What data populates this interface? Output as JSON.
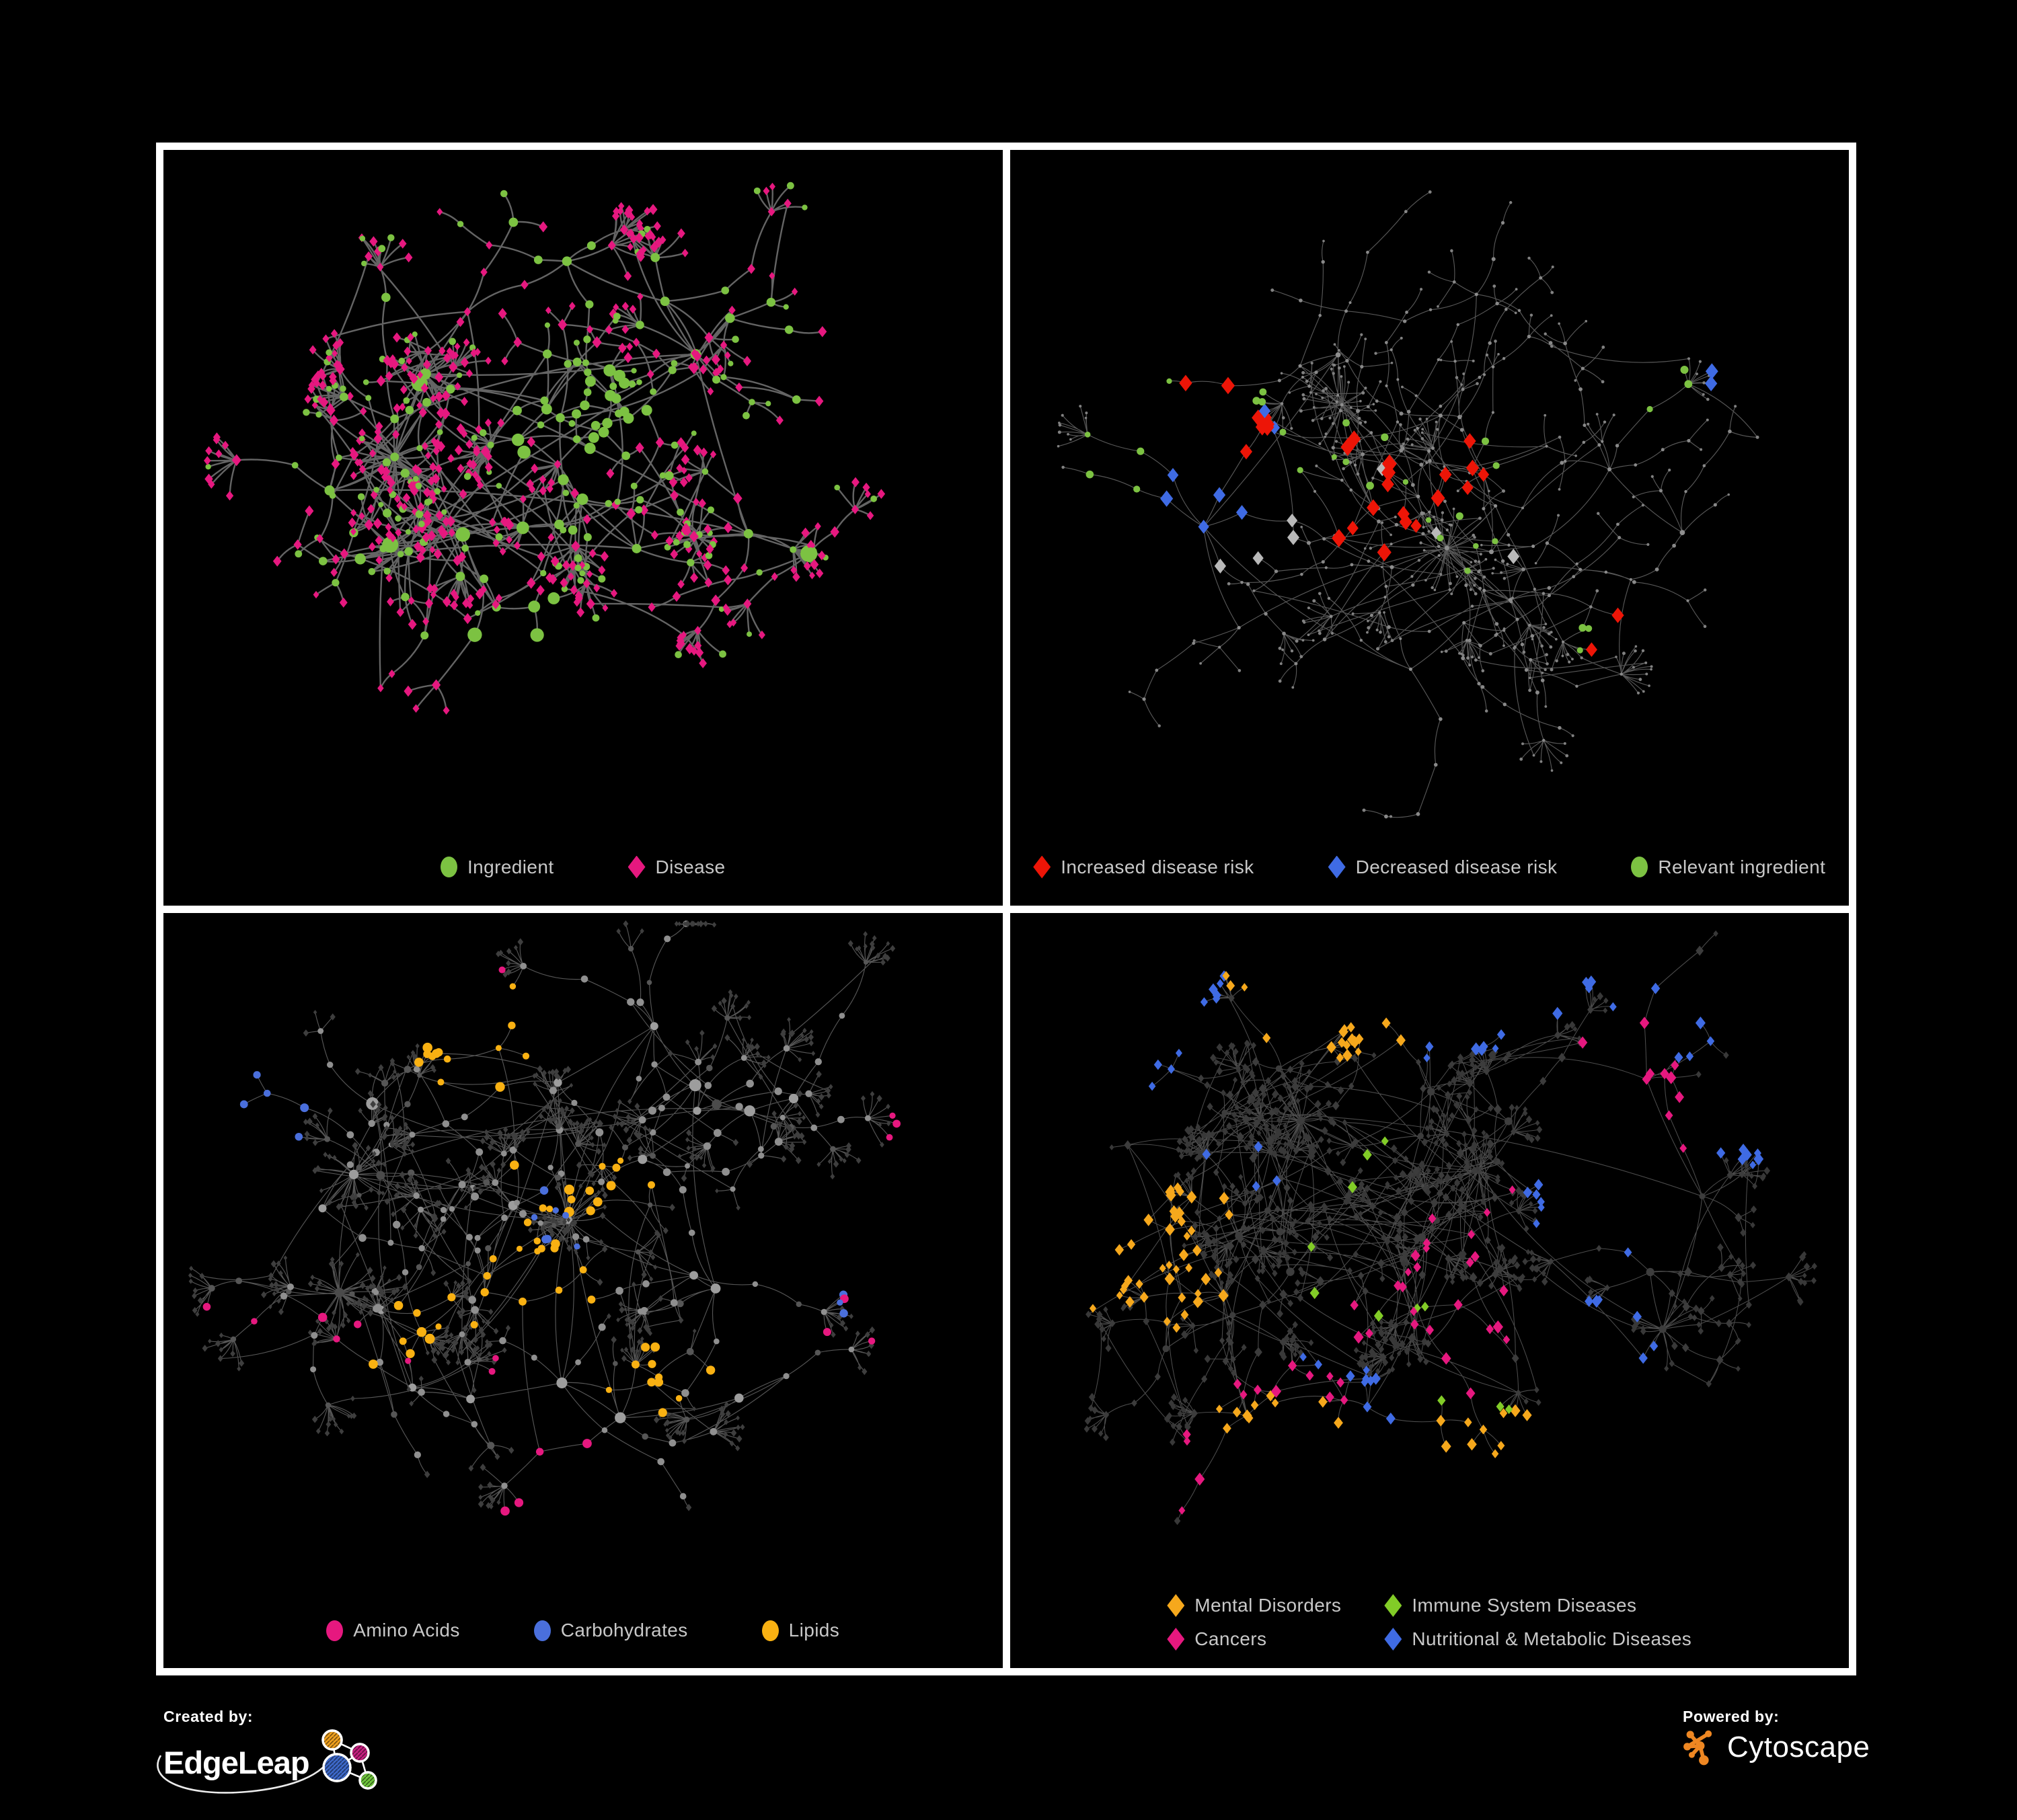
{
  "canvas": {
    "background": "#000000",
    "frame_color": "#ffffff"
  },
  "palette": {
    "ingredient_green": "#7CC242",
    "disease_pink": "#E6187F",
    "risk_red": "#ED1507",
    "risk_blue": "#3F6BE4",
    "neutral_gray": "#B9B9B9",
    "amino_pink": "#E6187F",
    "carb_blue": "#4A6FDC",
    "lipid_amber": "#F9B112",
    "mental_amber": "#F6A81C",
    "immune_green": "#82CC27",
    "cancer_pink": "#E6187F",
    "metabolic_blue": "#3F6BE4",
    "legend_text": "#c8c8c8"
  },
  "panels": [
    {
      "id": "ingredient-disease-network",
      "legend_columns": 1,
      "legend": [
        {
          "label": "Ingredient",
          "shape": "circle",
          "color": "#7CC242"
        },
        {
          "label": "Disease",
          "shape": "diamond",
          "color": "#E6187F"
        }
      ],
      "network": {
        "seed": 11,
        "hubs": 24,
        "spread": [
          0.34,
          0.31
        ],
        "branch": [
          2,
          3
        ],
        "steps_max": 3,
        "step": 66,
        "leaf_dist": 36,
        "burst_prob": 0.42,
        "burst": [
          5,
          9
        ],
        "mega": 2,
        "extra_links": 70,
        "edge": {
          "color": "#6f6f6f",
          "width": 2.4,
          "opacity": 0.9
        },
        "styles": {
          "hub": [
            {
              "shape": "circle",
              "color": "#7CC242",
              "size": [
                13,
                26
              ],
              "p": 1
            }
          ],
          "mid": [
            {
              "shape": "circle",
              "color": "#7CC242",
              "size": [
                9,
                14
              ],
              "p": 0.42
            },
            {
              "shape": "diamond",
              "color": "#E6187F",
              "size": [
                9,
                13
              ],
              "p": 0.58
            }
          ],
          "leaf": [
            {
              "shape": "diamond",
              "color": "#E6187F",
              "size": [
                8,
                12
              ],
              "p": 0.78
            },
            {
              "shape": "circle",
              "color": "#7CC242",
              "size": [
                8,
                11
              ],
              "p": 0.22
            }
          ]
        },
        "highlights": [
          {
            "shape": "circle",
            "color": "#7CC242",
            "count": 26,
            "size": [
              10,
              17
            ],
            "foci": [
              [
                0.5,
                0.37
              ],
              [
                0.52,
                0.4
              ]
            ],
            "spread": 0.05
          },
          {
            "shape": "circle",
            "color": "#7CC242",
            "count": 8,
            "size": [
              15,
              23
            ],
            "foci": [
              [
                0.44,
                0.74
              ],
              [
                0.38,
                0.55
              ],
              [
                0.5,
                0.38
              ]
            ],
            "spread": 0.1
          }
        ]
      }
    },
    {
      "id": "disease-risk-network",
      "legend_columns": 1,
      "legend": [
        {
          "label": "Increased disease risk",
          "shape": "diamond",
          "color": "#ED1507"
        },
        {
          "label": "Decreased disease risk",
          "shape": "diamond",
          "color": "#3F6BE4"
        },
        {
          "label": "Relevant ingredient",
          "shape": "circle",
          "color": "#7CC242"
        }
      ],
      "network": {
        "seed": 22,
        "hubs": 26,
        "spread": [
          0.37,
          0.34
        ],
        "branch": [
          2,
          3
        ],
        "steps_max": 4,
        "step": 60,
        "leaf_dist": 32,
        "burst_prob": 0.3,
        "burst": [
          5,
          10
        ],
        "mega": 2,
        "extra_links": 50,
        "edge": {
          "color": "#616161",
          "width": 1.15,
          "opacity": 0.9
        },
        "styles": {
          "hub": [
            {
              "shape": "circle",
              "color": "#8f8f8f",
              "size": [
                5,
                8
              ],
              "p": 1
            }
          ],
          "mid": [
            {
              "shape": "circle",
              "color": "#898989",
              "size": [
                4,
                6
              ],
              "p": 1
            }
          ],
          "leaf": [
            {
              "shape": "circle",
              "color": "#818181",
              "size": [
                3.5,
                5
              ],
              "p": 1
            }
          ]
        },
        "highlights": [
          {
            "shape": "diamond",
            "color": "#ED1507",
            "count": 28,
            "size": [
              15,
              20
            ],
            "foci": [
              [
                0.26,
                0.42
              ],
              [
                0.42,
                0.44
              ],
              [
                0.46,
                0.52
              ],
              [
                0.55,
                0.47
              ],
              [
                0.72,
                0.72
              ],
              [
                0.42,
                0.56
              ]
            ],
            "spread": 0.05
          },
          {
            "shape": "diamond",
            "color": "#3F6BE4",
            "count": 9,
            "size": [
              14,
              18
            ],
            "foci": [
              [
                0.26,
                0.45
              ],
              [
                0.24,
                0.5
              ],
              [
                0.83,
                0.34
              ]
            ],
            "spread": 0.035
          },
          {
            "shape": "diamond",
            "color": "#B9B9B9",
            "count": 7,
            "size": [
              13,
              17
            ],
            "foci": [
              [
                0.22,
                0.4
              ],
              [
                0.45,
                0.45
              ],
              [
                0.5,
                0.54
              ],
              [
                0.28,
                0.55
              ],
              [
                0.6,
                0.59
              ]
            ],
            "spread": 0.03
          },
          {
            "shape": "circle",
            "color": "#7CC242",
            "count": 30,
            "size": [
              8,
              12
            ],
            "foci": [
              [
                0.24,
                0.36
              ],
              [
                0.3,
                0.44
              ],
              [
                0.43,
                0.42
              ],
              [
                0.45,
                0.5
              ],
              [
                0.6,
                0.45
              ],
              [
                0.55,
                0.58
              ],
              [
                0.7,
                0.72
              ],
              [
                0.13,
                0.5
              ],
              [
                0.8,
                0.36
              ]
            ],
            "spread": 0.06
          }
        ]
      }
    },
    {
      "id": "nutrient-class-network",
      "legend_columns": 1,
      "legend": [
        {
          "label": "Amino Acids",
          "shape": "circle",
          "color": "#E6187F"
        },
        {
          "label": "Carbohydrates",
          "shape": "circle",
          "color": "#4A6FDC"
        },
        {
          "label": "Lipids",
          "shape": "circle",
          "color": "#F9B112"
        }
      ],
      "network": {
        "seed": 33,
        "hubs": 26,
        "spread": [
          0.35,
          0.32
        ],
        "branch": [
          2,
          3
        ],
        "steps_max": 3,
        "step": 64,
        "leaf_dist": 30,
        "burst_prob": 0.5,
        "burst": [
          6,
          9
        ],
        "mega": 3,
        "extra_links": 90,
        "edge": {
          "color": "#9a9a9a",
          "width": 1.15,
          "opacity": 0.55
        },
        "styles": {
          "hub": [
            {
              "shape": "circle",
              "color": "#9d9d9d",
              "size": [
                12,
                19
              ],
              "p": 0.8
            },
            {
              "shape": "circle",
              "color": "#4b4b4b",
              "size": [
                11,
                16
              ],
              "p": 0.2
            }
          ],
          "mid": [
            {
              "shape": "circle",
              "color": "#8f8f8f",
              "size": [
                8,
                12
              ],
              "p": 0.75
            },
            {
              "shape": "circle",
              "color": "#565656",
              "size": [
                7,
                11
              ],
              "p": 0.25
            }
          ],
          "leaf": [
            {
              "shape": "diamond",
              "color": "#3e3e3e",
              "size": [
                5,
                8
              ],
              "p": 1
            }
          ]
        },
        "highlights": [
          {
            "shape": "circle",
            "color": "#F9B112",
            "count": 62,
            "size": [
              9,
              15
            ],
            "foci": [
              [
                0.52,
                0.38
              ],
              [
                0.49,
                0.44
              ],
              [
                0.44,
                0.52
              ],
              [
                0.6,
                0.7
              ],
              [
                0.3,
                0.6
              ],
              [
                0.36,
                0.2
              ]
            ],
            "spread": 0.07
          },
          {
            "shape": "circle",
            "color": "#4A6FDC",
            "count": 15,
            "size": [
              9,
              13
            ],
            "foci": [
              [
                0.5,
                0.4
              ],
              [
                0.46,
                0.46
              ],
              [
                0.05,
                0.28
              ],
              [
                0.78,
                0.6
              ]
            ],
            "spread": 0.06
          },
          {
            "shape": "circle",
            "color": "#E6187F",
            "count": 19,
            "size": [
              9,
              14
            ],
            "foci": [
              [
                0.16,
                0.56
              ],
              [
                0.3,
                0.7
              ],
              [
                0.47,
                0.8
              ],
              [
                0.73,
                0.62
              ],
              [
                0.42,
                0.14
              ],
              [
                0.85,
                0.3
              ],
              [
                0.55,
                0.95
              ]
            ],
            "spread": 0.14
          }
        ]
      }
    },
    {
      "id": "disease-category-network",
      "legend_columns": 2,
      "legend": [
        {
          "label": "Mental Disorders",
          "shape": "diamond",
          "color": "#F6A81C"
        },
        {
          "label": "Immune System Diseases",
          "shape": "diamond",
          "color": "#82CC27"
        },
        {
          "label": "Cancers",
          "shape": "diamond",
          "color": "#E6187F"
        },
        {
          "label": "Nutritional & Metabolic Diseases",
          "shape": "diamond",
          "color": "#3F6BE4"
        }
      ],
      "network": {
        "seed": 44,
        "hubs": 30,
        "spread": [
          0.37,
          0.34
        ],
        "branch": [
          2,
          3
        ],
        "steps_max": 3,
        "step": 58,
        "leaf_dist": 28,
        "burst_prob": 0.42,
        "burst": [
          5,
          10
        ],
        "mega": 3,
        "extra_links": 160,
        "edge": {
          "color": "#656565",
          "width": 1.05,
          "opacity": 0.75
        },
        "styles": {
          "hub": [
            {
              "shape": "circle",
              "color": "#3d3d3d",
              "size": [
                9,
                13
              ],
              "p": 1
            }
          ],
          "mid": [
            {
              "shape": "diamond",
              "color": "#3c3c3c",
              "size": [
                7,
                11
              ],
              "p": 1
            }
          ],
          "leaf": [
            {
              "shape": "diamond",
              "color": "#383838",
              "size": [
                6,
                9
              ],
              "p": 1
            }
          ]
        },
        "highlights": [
          {
            "shape": "diamond",
            "color": "#F6A81C",
            "count": 82,
            "size": [
              9,
              14
            ],
            "foci": [
              [
                0.16,
                0.49
              ],
              [
                0.21,
                0.43
              ],
              [
                0.19,
                0.55
              ],
              [
                0.38,
                0.11
              ],
              [
                0.3,
                0.75
              ],
              [
                0.6,
                0.92
              ]
            ],
            "spread": 0.07
          },
          {
            "shape": "diamond",
            "color": "#E6187F",
            "count": 50,
            "size": [
              9,
              14
            ],
            "foci": [
              [
                0.5,
                0.54
              ],
              [
                0.55,
                0.44
              ],
              [
                0.58,
                0.64
              ],
              [
                0.46,
                0.62
              ],
              [
                0.77,
                0.27
              ],
              [
                0.33,
                0.8
              ]
            ],
            "spread": 0.08
          },
          {
            "shape": "diamond",
            "color": "#3F6BE4",
            "count": 62,
            "size": [
              9,
              14
            ],
            "foci": [
              [
                0.73,
                0.6
              ],
              [
                0.78,
                0.15
              ],
              [
                0.9,
                0.32
              ],
              [
                0.42,
                0.74
              ],
              [
                0.12,
                0.1
              ],
              [
                0.55,
                0.06
              ],
              [
                0.68,
                0.44
              ],
              [
                0.3,
                0.35
              ]
            ],
            "spread": 0.09
          },
          {
            "shape": "diamond",
            "color": "#82CC27",
            "count": 11,
            "size": [
              9,
              13
            ],
            "foci": [
              [
                0.47,
                0.34
              ],
              [
                0.44,
                0.58
              ],
              [
                0.57,
                0.83
              ],
              [
                0.36,
                0.45
              ]
            ],
            "spread": 0.12
          }
        ]
      }
    }
  ],
  "footer": {
    "created_by": {
      "label": "Created by:",
      "brand": "EdgeLeap"
    },
    "powered_by": {
      "label": "Powered by:",
      "brand": "Cytoscape",
      "icon_color": "#EE8722"
    },
    "edgeleap_logo_colors": {
      "orange": "#F0A11E",
      "magenta": "#C41E7E",
      "blue": "#3D68C8",
      "green": "#6EC43C"
    }
  }
}
